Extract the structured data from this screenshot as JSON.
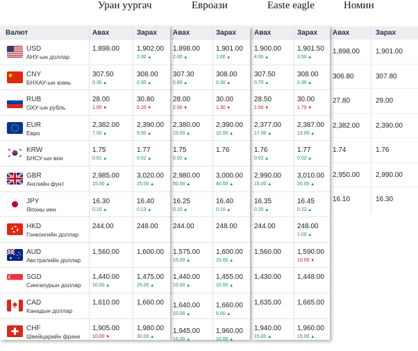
{
  "sources": [
    {
      "name": "Уран уургач"
    },
    {
      "name": "Евроази"
    },
    {
      "name": "Easte eagle"
    },
    {
      "name": "Номин"
    }
  ],
  "header": {
    "currency_label": "Валют",
    "buy_label": "Авах",
    "sell_label": "Зарах"
  },
  "currencies": [
    {
      "code": "USD",
      "name": "АНУ-ын доллар",
      "flag": "us-flag-icon"
    },
    {
      "code": "CNY",
      "name": "БНХАУ-ын юань",
      "flag": "cn-flag-icon"
    },
    {
      "code": "RUB",
      "name": "ОХУ-ын рубль",
      "flag": "ru-flag-icon"
    },
    {
      "code": "EUR",
      "name": "Евро",
      "flag": "eu-flag-icon"
    },
    {
      "code": "KRW",
      "name": "БНСУ-ын вон",
      "flag": "kr-flag-icon"
    },
    {
      "code": "GBR",
      "name": "Английн фунт",
      "flag": "gb-flag-icon"
    },
    {
      "code": "JPY",
      "name": "Японы иен",
      "flag": "jp-flag-icon"
    },
    {
      "code": "HKD",
      "name": "Гонконгийн доллар",
      "flag": "hk-flag-icon"
    },
    {
      "code": "AUD",
      "name": "Австралийн доллар",
      "flag": "au-flag-icon"
    },
    {
      "code": "SGD",
      "name": "Сингапурын доллар",
      "flag": "sg-flag-icon"
    },
    {
      "code": "CAD",
      "name": "Канадын доллар",
      "flag": "ca-flag-icon"
    },
    {
      "code": "CHF",
      "name": "Швейцарийн франк",
      "flag": "ch-flag-icon"
    }
  ],
  "banks": [
    {
      "rows": [
        {
          "buy": "1,898.00",
          "sell": "1,902.00",
          "buy_d": "",
          "buy_t": "",
          "sell_d": "2.00",
          "sell_t": "up"
        },
        {
          "buy": "307.50",
          "sell": "308.00",
          "buy_d": "0.30",
          "buy_t": "up",
          "sell_d": "0.30",
          "sell_t": "up"
        },
        {
          "buy": "28.00",
          "sell": "30.80",
          "buy_d": "1.00",
          "buy_t": "dn",
          "sell_d": "0.20",
          "sell_t": "dn"
        },
        {
          "buy": "2,382.00",
          "sell": "2,390.00",
          "buy_d": "7.00",
          "buy_t": "up",
          "sell_d": "5.00",
          "sell_t": "up"
        },
        {
          "buy": "1.75",
          "sell": "1.77",
          "buy_d": "0.01",
          "buy_t": "up",
          "sell_d": "0.02",
          "sell_t": "up"
        },
        {
          "buy": "2,985.00",
          "sell": "3,020.00",
          "buy_d": "15.00",
          "buy_t": "up",
          "sell_d": "25.00",
          "sell_t": "up"
        },
        {
          "buy": "16.30",
          "sell": "16.40",
          "buy_d": "0.10",
          "buy_t": "up",
          "sell_d": "0.13",
          "sell_t": "up"
        },
        {
          "buy": "244.00",
          "sell": "248.00",
          "buy_d": "",
          "buy_t": "",
          "sell_d": "",
          "sell_t": ""
        },
        {
          "buy": "1,560.00",
          "sell": "1,600.00",
          "buy_d": "",
          "buy_t": "",
          "sell_d": "",
          "sell_t": ""
        },
        {
          "buy": "1,440.00",
          "sell": "1,475.00",
          "buy_d": "10.00",
          "buy_t": "up",
          "sell_d": "25.00",
          "sell_t": "up"
        },
        {
          "buy": "1,610.00",
          "sell": "1,660.00",
          "buy_d": "",
          "buy_t": "",
          "sell_d": "",
          "sell_t": ""
        },
        {
          "buy": "1,905.00",
          "sell": "1,980.00",
          "buy_d": "10.00",
          "buy_t": "dn",
          "sell_d": "30.00",
          "sell_t": "up"
        }
      ]
    },
    {
      "rows": [
        {
          "buy": "1,898.00",
          "sell": "1,901.00",
          "buy_d": "2.00",
          "buy_t": "up",
          "sell_d": "1.00",
          "sell_t": "up"
        },
        {
          "buy": "307.30",
          "sell": "308.00",
          "buy_d": "0.80",
          "buy_t": "up",
          "sell_d": "0.30",
          "sell_t": "up"
        },
        {
          "buy": "28.00",
          "sell": "30.00",
          "buy_d": "2.00",
          "buy_t": "dn",
          "sell_d": "1.30",
          "sell_t": "dn"
        },
        {
          "buy": "2,380.00",
          "sell": "2,390.00",
          "buy_d": "15.00",
          "buy_t": "up",
          "sell_d": "10.00",
          "sell_t": "up"
        },
        {
          "buy": "1.75",
          "sell": "1.76",
          "buy_d": "0.02",
          "buy_t": "up",
          "sell_d": "",
          "sell_t": ""
        },
        {
          "buy": "2,980.00",
          "sell": "3,000.00",
          "buy_d": "50.00",
          "buy_t": "up",
          "sell_d": "40.00",
          "sell_t": "up"
        },
        {
          "buy": "16.25",
          "sell": "16.40",
          "buy_d": "0.10",
          "buy_t": "up",
          "sell_d": "0.10",
          "sell_t": "up"
        },
        {
          "buy": "244.00",
          "sell": "248.00",
          "buy_d": "",
          "buy_t": "",
          "sell_d": "",
          "sell_t": ""
        },
        {
          "buy": "1,575.00",
          "sell": "1,600.00",
          "buy_d": "15.00",
          "buy_t": "up",
          "sell_d": "15.00",
          "sell_t": "up"
        },
        {
          "buy": "1,440.00",
          "sell": "1,455.00",
          "buy_d": "10.00",
          "buy_t": "up",
          "sell_d": "10.00",
          "sell_t": "up"
        },
        {
          "buy": "1,640.00",
          "sell": "1,660.00",
          "buy_d": "10.00",
          "buy_t": "up",
          "sell_d": "5.00",
          "sell_t": "up"
        },
        {
          "buy": "1,945.00",
          "sell": "1,960.00",
          "buy_d": "15.00",
          "buy_t": "up",
          "sell_d": "10.00",
          "sell_t": "up"
        }
      ]
    },
    {
      "rows": [
        {
          "buy": "1,900.00",
          "sell": "1,901.50",
          "buy_d": "4.00",
          "buy_t": "up",
          "sell_d": "3.50",
          "sell_t": "up"
        },
        {
          "buy": "307.50",
          "sell": "308.00",
          "buy_d": "0.70",
          "buy_t": "up",
          "sell_d": "0.30",
          "sell_t": "up"
        },
        {
          "buy": "28.50",
          "sell": "30.00",
          "buy_d": "1.50",
          "buy_t": "dn",
          "sell_d": "1.70",
          "sell_t": "dn"
        },
        {
          "buy": "2,377.00",
          "sell": "2,387.00",
          "buy_d": "17.00",
          "buy_t": "up",
          "sell_d": "13.00",
          "sell_t": "up"
        },
        {
          "buy": "1.76",
          "sell": "1.77",
          "buy_d": "0.02",
          "buy_t": "up",
          "sell_d": "0.02",
          "sell_t": "up"
        },
        {
          "buy": "2,990.00",
          "sell": "3,010.00",
          "buy_d": "15.00",
          "buy_t": "up",
          "sell_d": "20.00",
          "sell_t": "up"
        },
        {
          "buy": "16.35",
          "sell": "16.45",
          "buy_d": "0.20",
          "buy_t": "up",
          "sell_d": "0.22",
          "sell_t": "up"
        },
        {
          "buy": "244.00",
          "sell": "248.00",
          "buy_d": "",
          "buy_t": "",
          "sell_d": "1.00",
          "sell_t": "up"
        },
        {
          "buy": "1,560.00",
          "sell": "1,590.00",
          "buy_d": "",
          "buy_t": "",
          "sell_d": "10.00",
          "sell_t": "dn"
        },
        {
          "buy": "1,430.00",
          "sell": "1,448.00",
          "buy_d": "",
          "buy_t": "",
          "sell_d": "",
          "sell_t": ""
        },
        {
          "buy": "1,635.00",
          "sell": "1,665.00",
          "buy_d": "",
          "buy_t": "",
          "sell_d": "",
          "sell_t": ""
        },
        {
          "buy": "1,940.00",
          "sell": "1,960.00",
          "buy_d": "15.00",
          "buy_t": "up",
          "sell_d": "15.00",
          "sell_t": "up"
        }
      ]
    },
    {
      "rows": [
        {
          "buy": "1,898.00",
          "sell": "1,901.00"
        },
        {
          "buy": "306.80",
          "sell": "307.80"
        },
        {
          "buy": "27.80",
          "sell": "29.00"
        },
        {
          "buy": "2,382.00",
          "sell": "2,390.00"
        },
        {
          "buy": "1.74",
          "sell": "1.76"
        },
        {
          "buy": "2,950.00",
          "sell": "2,990.00"
        },
        {
          "buy": "16.10",
          "sell": "16.30"
        }
      ]
    }
  ],
  "colors": {
    "up": "#1f8a43",
    "down": "#c01a1a",
    "header_bg": "#edeef2"
  }
}
